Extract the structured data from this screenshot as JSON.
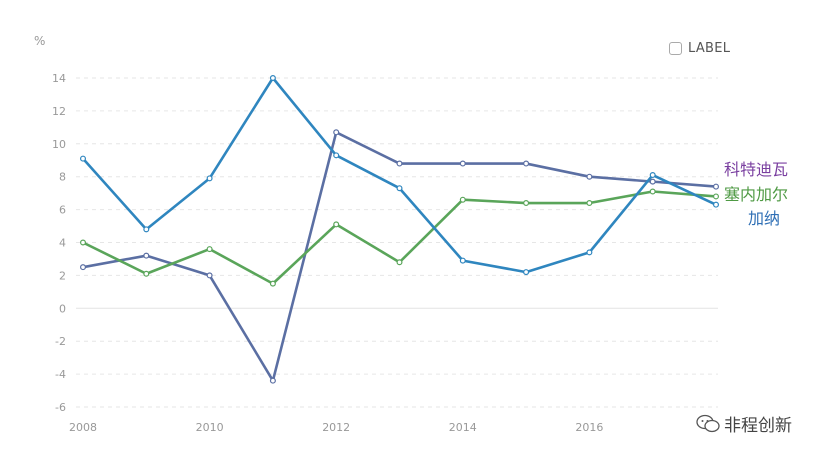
{
  "unit_label": "%",
  "label_toggle": {
    "text": "LABEL",
    "checked": false
  },
  "watermark": {
    "text": "非程创新",
    "icon": "wechat-icon"
  },
  "chart_data": {
    "type": "line",
    "x": [
      2008,
      2009,
      2010,
      2011,
      2012,
      2013,
      2014,
      2015,
      2016,
      2017,
      2018
    ],
    "x_tick_labels": [
      "2008",
      "2010",
      "2012",
      "2014",
      "2016"
    ],
    "y_tick_labels": [
      "-6",
      "-4",
      "-2",
      "0",
      "2",
      "4",
      "6",
      "8",
      "10",
      "12",
      "14"
    ],
    "ylim": [
      -6,
      14
    ],
    "ylabel": "%",
    "grid": true,
    "series": [
      {
        "name": "科特迪瓦",
        "color": "#5b6fa3",
        "label_color": "#7a3fa0",
        "values": [
          2.5,
          3.2,
          2.0,
          -4.4,
          10.7,
          8.8,
          8.8,
          8.8,
          8.0,
          7.7,
          7.4
        ]
      },
      {
        "name": "塞内加尔",
        "color": "#5aa55a",
        "label_color": "#4f9a44",
        "values": [
          4.0,
          2.1,
          3.6,
          1.5,
          5.1,
          2.8,
          6.6,
          6.4,
          6.4,
          7.1,
          6.8
        ]
      },
      {
        "name": "加纳",
        "color": "#2f86bf",
        "label_color": "#2f6fb5",
        "values": [
          9.1,
          4.8,
          7.9,
          14.0,
          9.3,
          7.3,
          2.9,
          2.2,
          3.4,
          8.1,
          6.3
        ]
      }
    ]
  }
}
